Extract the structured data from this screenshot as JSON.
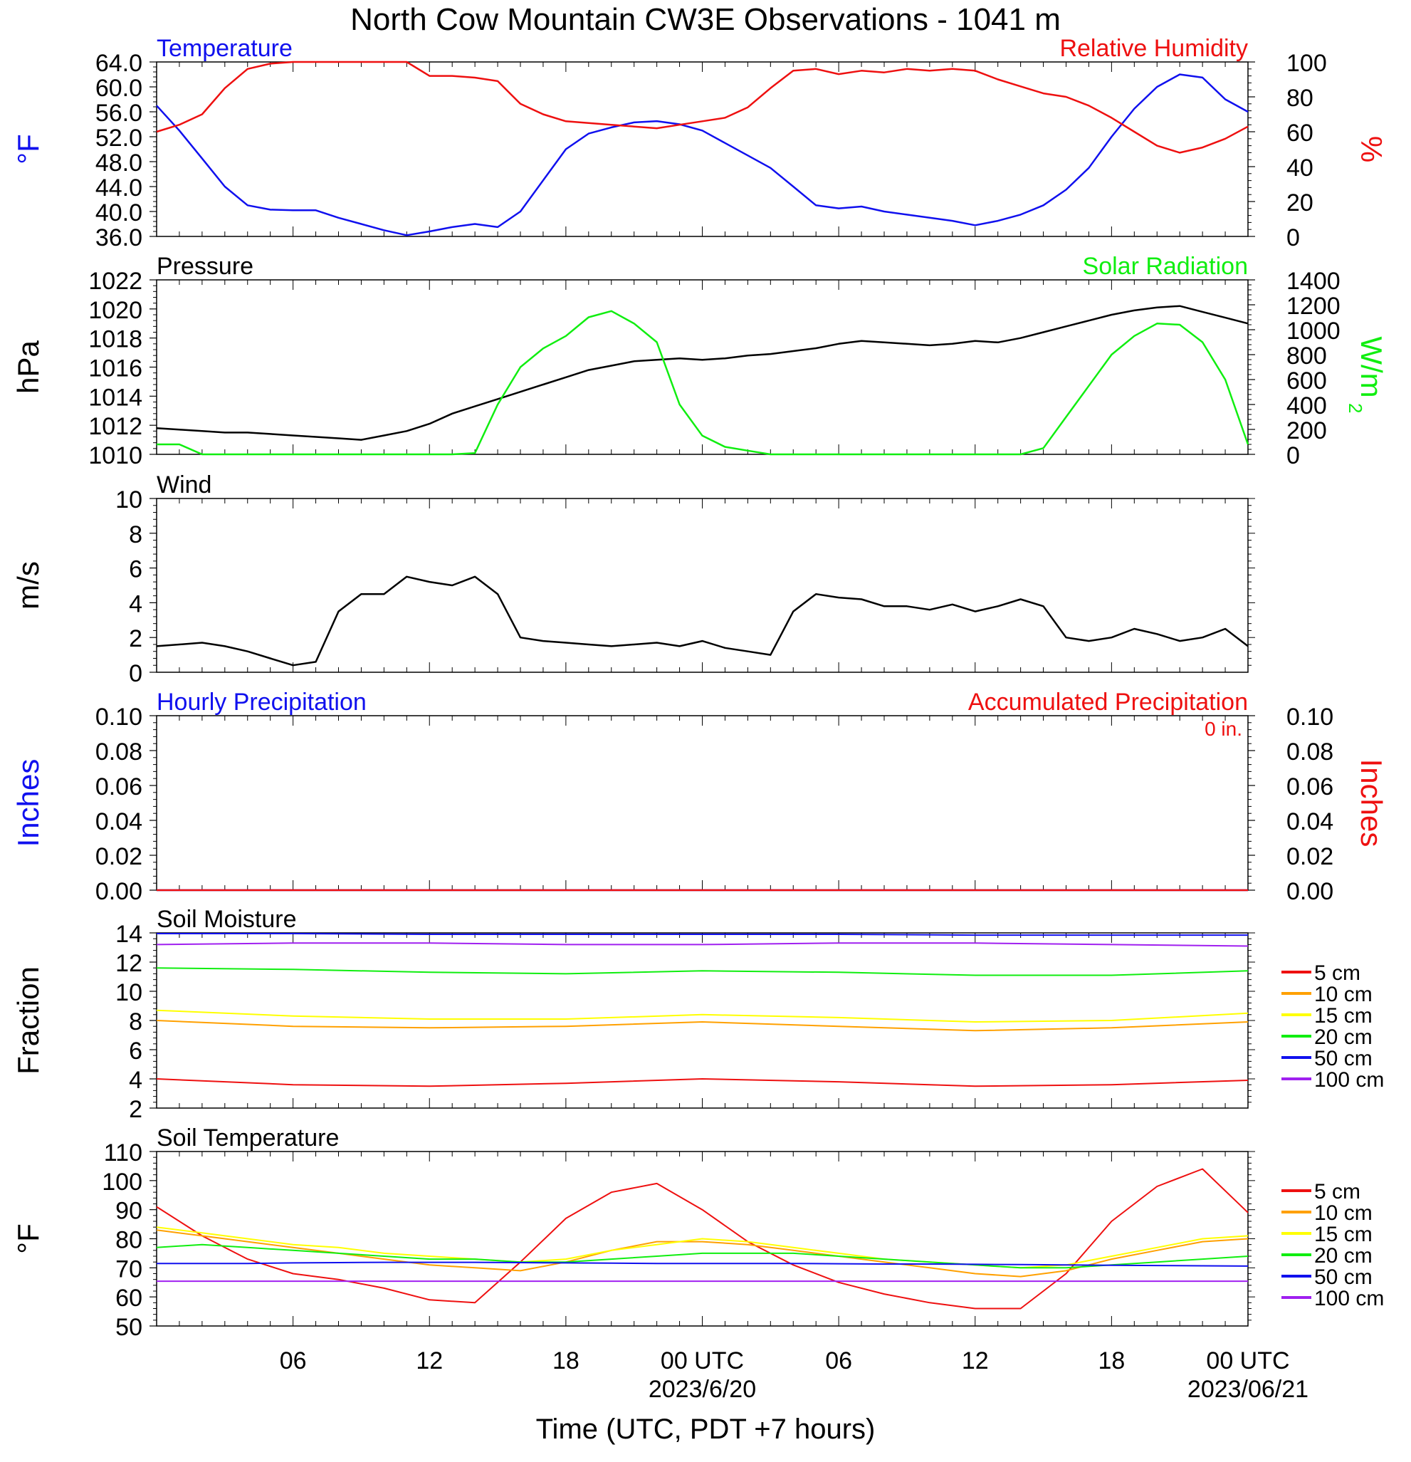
{
  "title": "North Cow Mountain CW3E Observations - 1041 m",
  "xaxis": {
    "label": "Time (UTC, PDT +7 hours)",
    "ticks": [
      "06",
      "12",
      "18",
      "00 UTC",
      "06",
      "12",
      "18",
      "00 UTC"
    ],
    "dates": [
      "2023/6/20",
      "2023/06/21"
    ]
  },
  "colors": {
    "blue": "#1010ee",
    "red": "#ee1010",
    "green": "#10ee10",
    "black": "#000000",
    "orange": "#ffa000",
    "yellow": "#ffff00",
    "purple": "#a020f0"
  },
  "legend": [
    "5 cm",
    "10 cm",
    "15 cm",
    "20 cm",
    "50 cm",
    "100 cm"
  ],
  "chart_data": [
    {
      "type": "line",
      "left_title": "Temperature",
      "right_title": "Relative Humidity",
      "ylabel_left": "°F",
      "ylabel_right": "%",
      "ylim_left": [
        36,
        64
      ],
      "ylim_right": [
        0,
        100
      ],
      "left_ticks": [
        "64.0",
        "60.0",
        "56.0",
        "52.0",
        "48.0",
        "44.0",
        "40.0",
        "36.0"
      ],
      "right_ticks": [
        "100",
        "80",
        "60",
        "40",
        "20",
        "0"
      ],
      "x": [
        0,
        1,
        2,
        3,
        4,
        5,
        6,
        7,
        8,
        9,
        10,
        11,
        12,
        13,
        14,
        15,
        16,
        17,
        18,
        19,
        20,
        21,
        22,
        23,
        24,
        25,
        26,
        27,
        28,
        29,
        30,
        31,
        32,
        33,
        34,
        35,
        36,
        37,
        38,
        39,
        40,
        41,
        42,
        43,
        44,
        45,
        46,
        47,
        48
      ],
      "series": [
        {
          "name": "Temperature",
          "color": "blue",
          "axis": "left",
          "values": [
            57,
            53,
            48.5,
            44,
            41,
            40.3,
            40.2,
            40.2,
            39,
            38,
            37,
            36.2,
            36.8,
            37.5,
            38,
            37.5,
            40,
            45,
            50,
            52.5,
            53.5,
            54.3,
            54.5,
            54,
            53,
            51,
            49,
            47,
            44,
            41,
            40.5,
            40.8,
            40,
            39.5,
            39,
            38.5,
            37.8,
            38.5,
            39.5,
            41,
            43.5,
            47,
            52,
            56.5,
            60,
            62,
            61.5,
            58,
            56
          ]
        },
        {
          "name": "Relative Humidity",
          "color": "red",
          "axis": "right",
          "values": [
            60,
            64,
            70,
            85,
            96,
            99,
            100,
            100,
            100,
            100,
            100,
            100,
            92,
            92,
            91,
            89,
            76,
            70,
            66,
            65,
            64,
            63,
            62,
            64,
            66,
            68,
            74,
            85,
            95,
            96,
            93,
            95,
            94,
            96,
            95,
            96,
            95,
            90,
            86,
            82,
            80,
            75,
            68,
            60,
            52,
            48,
            51,
            56,
            63
          ]
        }
      ]
    },
    {
      "type": "line",
      "left_title": "Pressure",
      "right_title": "Solar Radiation",
      "ylabel_left": "hPa",
      "ylabel_right": "W/m",
      "ylim_left": [
        1010,
        1022
      ],
      "ylim_right": [
        0,
        1400
      ],
      "left_ticks": [
        "1022",
        "1020",
        "1018",
        "1016",
        "1014",
        "1012",
        "1010"
      ],
      "right_ticks": [
        "1400",
        "1200",
        "1000",
        "800",
        "600",
        "400",
        "200",
        "0"
      ],
      "x": [
        0,
        1,
        2,
        3,
        4,
        5,
        6,
        7,
        8,
        9,
        10,
        11,
        12,
        13,
        14,
        15,
        16,
        17,
        18,
        19,
        20,
        21,
        22,
        23,
        24,
        25,
        26,
        27,
        28,
        29,
        30,
        31,
        32,
        33,
        34,
        35,
        36,
        37,
        38,
        39,
        40,
        41,
        42,
        43,
        44,
        45,
        46,
        47,
        48
      ],
      "series": [
        {
          "name": "Pressure",
          "color": "black",
          "axis": "left",
          "values": [
            1011.8,
            1011.7,
            1011.6,
            1011.5,
            1011.5,
            1011.4,
            1011.3,
            1011.2,
            1011.1,
            1011,
            1011.3,
            1011.6,
            1012.1,
            1012.8,
            1013.3,
            1013.8,
            1014.3,
            1014.8,
            1015.3,
            1015.8,
            1016.1,
            1016.4,
            1016.5,
            1016.6,
            1016.5,
            1016.6,
            1016.8,
            1016.9,
            1017.1,
            1017.3,
            1017.6,
            1017.8,
            1017.7,
            1017.6,
            1017.5,
            1017.6,
            1017.8,
            1017.7,
            1018,
            1018.4,
            1018.8,
            1019.2,
            1019.6,
            1019.9,
            1020.1,
            1020.2,
            1019.8,
            1019.4,
            1019
          ]
        },
        {
          "name": "Solar Radiation",
          "color": "green",
          "axis": "right",
          "values": [
            80,
            80,
            0,
            0,
            0,
            0,
            0,
            0,
            0,
            0,
            0,
            0,
            0,
            0,
            10,
            400,
            700,
            850,
            950,
            1100,
            1150,
            1050,
            900,
            400,
            150,
            60,
            30,
            0,
            0,
            0,
            0,
            0,
            0,
            0,
            0,
            0,
            0,
            0,
            0,
            50,
            300,
            550,
            800,
            950,
            1050,
            1040,
            900,
            600,
            80
          ]
        }
      ]
    },
    {
      "type": "line",
      "left_title": "Wind",
      "ylabel_left": "m/s",
      "ylim_left": [
        0,
        10
      ],
      "left_ticks": [
        "10",
        "8",
        "6",
        "4",
        "2",
        "0"
      ],
      "x": [
        0,
        1,
        2,
        3,
        4,
        5,
        6,
        7,
        8,
        9,
        10,
        11,
        12,
        13,
        14,
        15,
        16,
        17,
        18,
        19,
        20,
        21,
        22,
        23,
        24,
        25,
        26,
        27,
        28,
        29,
        30,
        31,
        32,
        33,
        34,
        35,
        36,
        37,
        38,
        39,
        40,
        41,
        42,
        43,
        44,
        45,
        46,
        47,
        48
      ],
      "series": [
        {
          "name": "Wind speed",
          "color": "black",
          "axis": "left",
          "values": [
            1.5,
            1.6,
            1.7,
            1.5,
            1.2,
            0.8,
            0.4,
            0.6,
            3.5,
            4.5,
            4.5,
            5.5,
            5.2,
            5,
            5.5,
            4.5,
            2,
            1.8,
            1.7,
            1.6,
            1.5,
            1.6,
            1.7,
            1.5,
            1.8,
            1.4,
            1.2,
            1,
            3.5,
            4.5,
            4.3,
            4.2,
            3.8,
            3.8,
            3.6,
            3.9,
            3.5,
            3.8,
            4.2,
            3.8,
            2,
            1.8,
            2,
            2.5,
            2.2,
            1.8,
            2,
            2.5,
            1.5
          ]
        }
      ]
    },
    {
      "type": "line",
      "left_title": "Hourly Precipitation",
      "right_title": "Accumulated Precipitation",
      "annotation": "0 in.",
      "ylabel_left": "Inches",
      "ylabel_right": "Inches",
      "ylim_left": [
        0,
        0.1
      ],
      "ylim_right": [
        0,
        0.1
      ],
      "left_ticks": [
        "0.10",
        "0.08",
        "0.06",
        "0.04",
        "0.02",
        "0.00"
      ],
      "right_ticks": [
        "0.10",
        "0.08",
        "0.06",
        "0.04",
        "0.02",
        "0.00"
      ],
      "x": [
        0,
        48
      ],
      "series": [
        {
          "name": "Hourly Precipitation",
          "color": "blue",
          "axis": "left",
          "values": [
            0,
            0
          ]
        },
        {
          "name": "Accumulated Precipitation",
          "color": "red",
          "axis": "right",
          "values": [
            0,
            0
          ]
        }
      ]
    },
    {
      "type": "line",
      "left_title": "Soil Moisture",
      "ylabel_left": "Fraction",
      "ylim_left": [
        2,
        14
      ],
      "left_ticks": [
        "14",
        "12",
        "10",
        "8",
        "6",
        "4",
        "2"
      ],
      "x": [
        0,
        6,
        12,
        18,
        24,
        30,
        36,
        42,
        48
      ],
      "series": [
        {
          "name": "5 cm",
          "color": "red",
          "axis": "left",
          "values": [
            4,
            3.6,
            3.5,
            3.7,
            4,
            3.8,
            3.5,
            3.6,
            3.9
          ]
        },
        {
          "name": "10 cm",
          "color": "orange",
          "axis": "left",
          "values": [
            8,
            7.6,
            7.5,
            7.6,
            7.9,
            7.6,
            7.3,
            7.5,
            7.9
          ]
        },
        {
          "name": "15 cm",
          "color": "yellow",
          "axis": "left",
          "values": [
            8.7,
            8.3,
            8.1,
            8.1,
            8.4,
            8.2,
            7.9,
            8.0,
            8.5
          ]
        },
        {
          "name": "20 cm",
          "color": "green",
          "axis": "left",
          "values": [
            11.6,
            11.5,
            11.3,
            11.2,
            11.4,
            11.3,
            11.1,
            11.1,
            11.4
          ]
        },
        {
          "name": "50 cm",
          "color": "blue",
          "axis": "left",
          "values": [
            13.95,
            13.95,
            13.9,
            13.9,
            13.9,
            13.9,
            13.85,
            13.85,
            13.85
          ]
        },
        {
          "name": "100 cm",
          "color": "purple",
          "axis": "left",
          "values": [
            13.2,
            13.3,
            13.3,
            13.2,
            13.2,
            13.3,
            13.3,
            13.2,
            13.1
          ]
        }
      ]
    },
    {
      "type": "line",
      "left_title": "Soil Temperature",
      "ylabel_left": "°F",
      "ylim_left": [
        50,
        110
      ],
      "left_ticks": [
        "110",
        "100",
        "90",
        "80",
        "70",
        "60",
        "50"
      ],
      "x": [
        0,
        2,
        4,
        6,
        8,
        10,
        12,
        14,
        16,
        18,
        20,
        22,
        24,
        26,
        28,
        30,
        32,
        34,
        36,
        38,
        40,
        42,
        44,
        46,
        48
      ],
      "series": [
        {
          "name": "5 cm",
          "color": "red",
          "axis": "left",
          "values": [
            91,
            81,
            73,
            68,
            66,
            63,
            59,
            58,
            72,
            87,
            96,
            99,
            90,
            79,
            71,
            65,
            61,
            58,
            56,
            56,
            68,
            86,
            98,
            104,
            89
          ]
        },
        {
          "name": "10 cm",
          "color": "orange",
          "axis": "left",
          "values": [
            83,
            81,
            79,
            77,
            75,
            73,
            71,
            70,
            69,
            72,
            76,
            79,
            79,
            78,
            76,
            74,
            72,
            70,
            68,
            67,
            69,
            73,
            76,
            79,
            80
          ]
        },
        {
          "name": "15 cm",
          "color": "yellow",
          "axis": "left",
          "values": [
            84,
            82,
            80,
            78,
            77,
            75,
            74,
            73,
            72,
            73,
            76,
            78,
            80,
            79,
            77,
            75,
            73,
            72,
            71,
            70,
            71,
            74,
            77,
            80,
            81
          ]
        },
        {
          "name": "20 cm",
          "color": "green",
          "axis": "left",
          "values": [
            77,
            78,
            77,
            76,
            75,
            74,
            73,
            73,
            72,
            72,
            73,
            74,
            75,
            75,
            75,
            74,
            73,
            72,
            71,
            70,
            70,
            71,
            72,
            73,
            74
          ]
        },
        {
          "name": "50 cm",
          "color": "blue",
          "axis": "left",
          "values": [
            71.5,
            71.5,
            71.5,
            71.7,
            71.8,
            71.9,
            71.9,
            71.9,
            71.8,
            71.7,
            71.6,
            71.5,
            71.5,
            71.5,
            71.5,
            71.4,
            71.3,
            71.3,
            71.2,
            71.1,
            71,
            70.9,
            70.8,
            70.7,
            70.6
          ]
        },
        {
          "name": "100 cm",
          "color": "purple",
          "axis": "left",
          "values": [
            65.4,
            65.4,
            65.4,
            65.4,
            65.4,
            65.4,
            65.4,
            65.4,
            65.4,
            65.4,
            65.4,
            65.4,
            65.4,
            65.4,
            65.4,
            65.4,
            65.4,
            65.4,
            65.4,
            65.4,
            65.4,
            65.4,
            65.4,
            65.4,
            65.4
          ]
        }
      ]
    }
  ]
}
